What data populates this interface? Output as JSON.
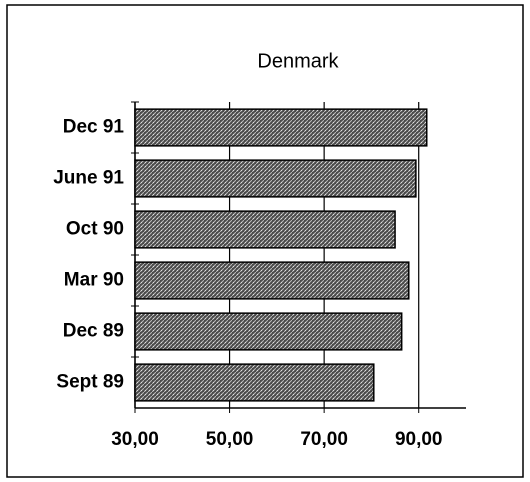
{
  "chart_data": {
    "type": "barh",
    "title": "Denmark",
    "categories": [
      "Dec 91",
      "June 91",
      "Oct 90",
      "Mar 90",
      "Dec 89",
      "Sept 89"
    ],
    "values": [
      91.7,
      89.4,
      85,
      87.9,
      86.4,
      80.5
    ],
    "color": "#4a4a4a",
    "xlim": [
      30,
      100
    ],
    "xticks": [
      {
        "value": 30,
        "label": "30,00"
      },
      {
        "value": 50,
        "label": "50,00"
      },
      {
        "value": 70,
        "label": "70,00"
      },
      {
        "value": 90,
        "label": "90,00"
      }
    ],
    "grid": true
  }
}
